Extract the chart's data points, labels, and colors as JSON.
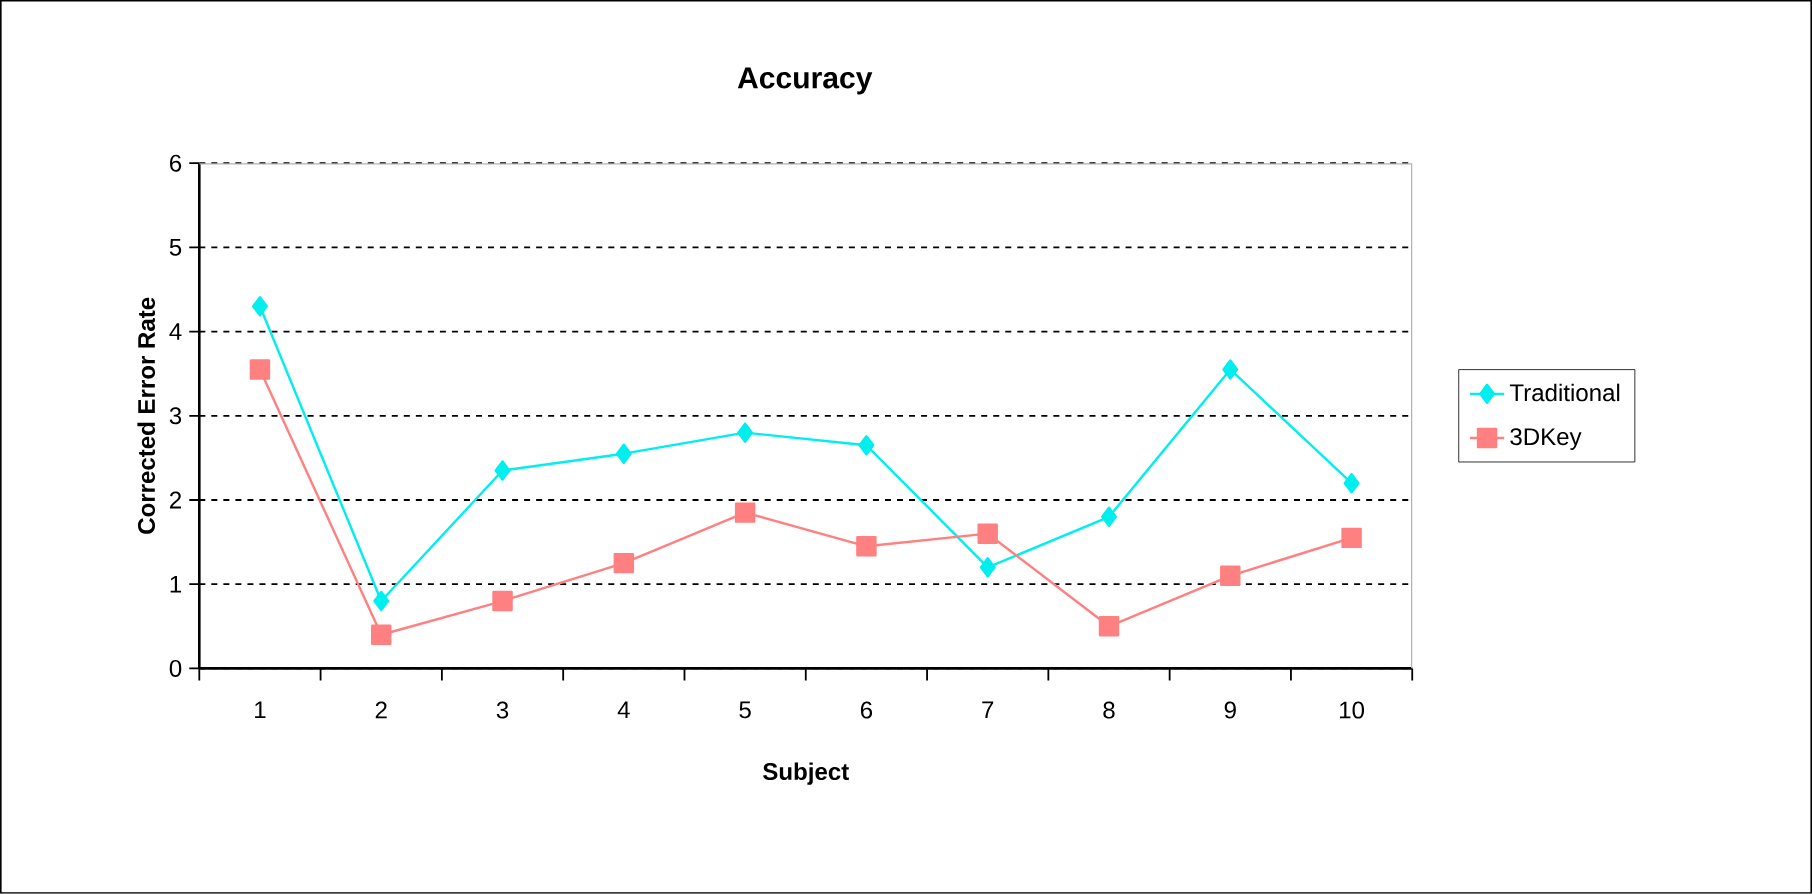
{
  "chart_data": {
    "type": "line",
    "title": "Accuracy",
    "xlabel": "Subject",
    "ylabel": "Corrected Error Rate",
    "categories": [
      "1",
      "2",
      "3",
      "4",
      "5",
      "6",
      "7",
      "8",
      "9",
      "10"
    ],
    "series": [
      {
        "name": "Traditional",
        "color": "#00eeee",
        "marker": "diamond",
        "values": [
          4.3,
          0.8,
          2.35,
          2.55,
          2.8,
          2.65,
          1.2,
          1.8,
          3.55,
          2.2
        ]
      },
      {
        "name": "3DKey",
        "color": "#ff8080",
        "marker": "square",
        "values": [
          3.55,
          0.4,
          0.8,
          1.25,
          1.85,
          1.45,
          1.6,
          0.5,
          1.1,
          1.55
        ]
      }
    ],
    "ylim": [
      0,
      6
    ],
    "yticks": [
      0,
      1,
      2,
      3,
      4,
      5,
      6
    ],
    "grid": "y",
    "legend": "right",
    "line_style": "solid"
  }
}
